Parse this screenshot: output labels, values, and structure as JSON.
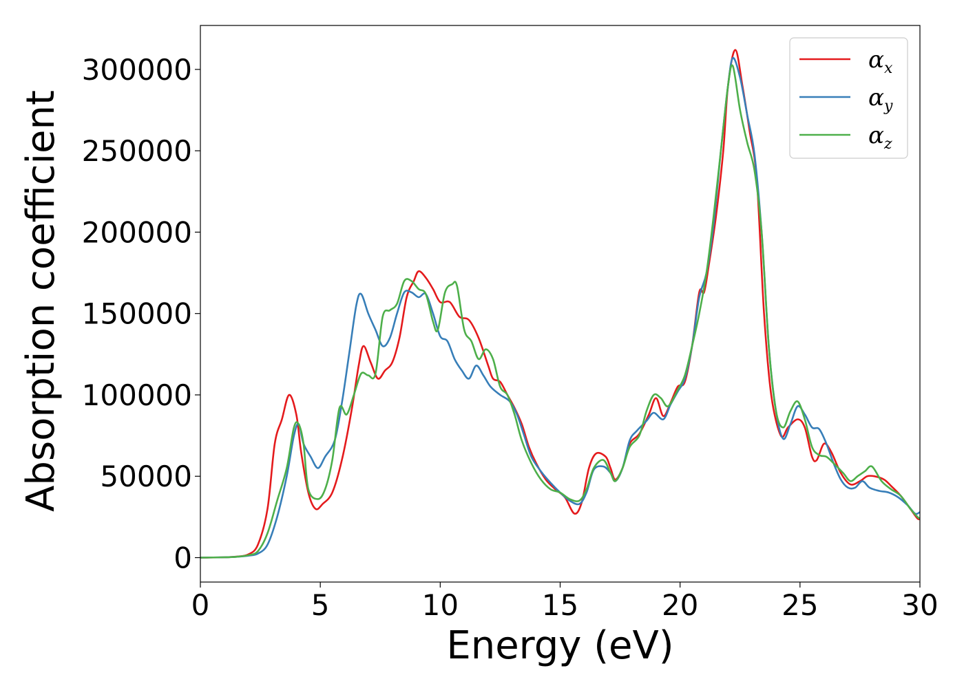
{
  "chart_data": {
    "type": "line",
    "title": "",
    "xlabel": "Energy (eV)",
    "ylabel": "Absorption coefficient",
    "xlim": [
      0,
      30
    ],
    "ylim": [
      -15000,
      327000
    ],
    "xticks": [
      0,
      5,
      10,
      15,
      20,
      25,
      30
    ],
    "yticks": [
      0,
      50000,
      100000,
      150000,
      200000,
      250000,
      300000
    ],
    "grid": false,
    "legend_position": "top-right",
    "series": [
      {
        "name": "α",
        "subscript": "x",
        "color": "#e41a1c",
        "points": [
          [
            0,
            0
          ],
          [
            1,
            200
          ],
          [
            1.5,
            600
          ],
          [
            2,
            2000
          ],
          [
            2.4,
            8000
          ],
          [
            2.8,
            30000
          ],
          [
            3.1,
            70000
          ],
          [
            3.4,
            85000
          ],
          [
            3.7,
            100000
          ],
          [
            4.0,
            88000
          ],
          [
            4.2,
            65000
          ],
          [
            4.5,
            40000
          ],
          [
            4.8,
            30000
          ],
          [
            5.1,
            33000
          ],
          [
            5.5,
            40000
          ],
          [
            5.9,
            60000
          ],
          [
            6.3,
            90000
          ],
          [
            6.6,
            118000
          ],
          [
            6.8,
            130000
          ],
          [
            7.1,
            120000
          ],
          [
            7.4,
            110000
          ],
          [
            7.7,
            115000
          ],
          [
            8.0,
            120000
          ],
          [
            8.3,
            135000
          ],
          [
            8.6,
            160000
          ],
          [
            8.9,
            170000
          ],
          [
            9.1,
            176000
          ],
          [
            9.4,
            172000
          ],
          [
            9.7,
            165000
          ],
          [
            10.0,
            157000
          ],
          [
            10.4,
            157000
          ],
          [
            10.8,
            148000
          ],
          [
            11.2,
            146000
          ],
          [
            11.6,
            135000
          ],
          [
            12.0,
            118000
          ],
          [
            12.2,
            110000
          ],
          [
            12.5,
            108000
          ],
          [
            12.8,
            100000
          ],
          [
            13.1,
            92000
          ],
          [
            13.4,
            82000
          ],
          [
            13.7,
            68000
          ],
          [
            14.0,
            58000
          ],
          [
            14.4,
            48000
          ],
          [
            14.8,
            42000
          ],
          [
            15.2,
            37000
          ],
          [
            15.6,
            27000
          ],
          [
            15.9,
            34000
          ],
          [
            16.2,
            55000
          ],
          [
            16.5,
            64000
          ],
          [
            16.9,
            62000
          ],
          [
            17.1,
            55000
          ],
          [
            17.3,
            48000
          ],
          [
            17.6,
            55000
          ],
          [
            17.9,
            70000
          ],
          [
            18.3,
            76000
          ],
          [
            18.7,
            88000
          ],
          [
            19.0,
            98000
          ],
          [
            19.3,
            87000
          ],
          [
            19.6,
            95000
          ],
          [
            19.9,
            105000
          ],
          [
            20.2,
            108000
          ],
          [
            20.5,
            130000
          ],
          [
            20.8,
            163000
          ],
          [
            21.0,
            163000
          ],
          [
            21.2,
            180000
          ],
          [
            21.5,
            210000
          ],
          [
            21.8,
            250000
          ],
          [
            22.0,
            290000
          ],
          [
            22.3,
            312000
          ],
          [
            22.6,
            290000
          ],
          [
            22.9,
            262000
          ],
          [
            23.2,
            232000
          ],
          [
            23.5,
            150000
          ],
          [
            23.8,
            100000
          ],
          [
            24.2,
            75000
          ],
          [
            24.5,
            80000
          ],
          [
            24.9,
            85000
          ],
          [
            25.2,
            80000
          ],
          [
            25.5,
            62000
          ],
          [
            25.7,
            60000
          ],
          [
            26.0,
            70000
          ],
          [
            26.3,
            65000
          ],
          [
            26.7,
            52000
          ],
          [
            27.1,
            45000
          ],
          [
            27.5,
            47000
          ],
          [
            27.8,
            50000
          ],
          [
            28.1,
            50000
          ],
          [
            28.5,
            48000
          ],
          [
            28.8,
            44000
          ],
          [
            29.2,
            38000
          ],
          [
            29.6,
            30000
          ],
          [
            29.9,
            24000
          ],
          [
            30,
            24000
          ]
        ]
      },
      {
        "name": "α",
        "subscript": "y",
        "color": "#377eb8",
        "points": [
          [
            0,
            0
          ],
          [
            1,
            200
          ],
          [
            1.5,
            500
          ],
          [
            2,
            1200
          ],
          [
            2.4,
            2500
          ],
          [
            2.8,
            8000
          ],
          [
            3.2,
            25000
          ],
          [
            3.6,
            50000
          ],
          [
            3.9,
            75000
          ],
          [
            4.1,
            82000
          ],
          [
            4.3,
            70000
          ],
          [
            4.6,
            62000
          ],
          [
            4.9,
            55000
          ],
          [
            5.2,
            62000
          ],
          [
            5.6,
            72000
          ],
          [
            5.9,
            95000
          ],
          [
            6.2,
            125000
          ],
          [
            6.5,
            155000
          ],
          [
            6.7,
            162000
          ],
          [
            7.0,
            150000
          ],
          [
            7.3,
            140000
          ],
          [
            7.6,
            130000
          ],
          [
            7.9,
            135000
          ],
          [
            8.2,
            150000
          ],
          [
            8.5,
            163000
          ],
          [
            8.8,
            163000
          ],
          [
            9.1,
            160000
          ],
          [
            9.4,
            162000
          ],
          [
            9.7,
            150000
          ],
          [
            10.0,
            136000
          ],
          [
            10.3,
            133000
          ],
          [
            10.6,
            122000
          ],
          [
            10.9,
            115000
          ],
          [
            11.2,
            110000
          ],
          [
            11.5,
            118000
          ],
          [
            11.8,
            112000
          ],
          [
            12.1,
            105000
          ],
          [
            12.5,
            100000
          ],
          [
            12.9,
            96000
          ],
          [
            13.2,
            88000
          ],
          [
            13.5,
            75000
          ],
          [
            13.8,
            62000
          ],
          [
            14.2,
            53000
          ],
          [
            14.6,
            46000
          ],
          [
            15.0,
            40000
          ],
          [
            15.4,
            35000
          ],
          [
            15.8,
            33000
          ],
          [
            16.1,
            40000
          ],
          [
            16.4,
            54000
          ],
          [
            16.8,
            56000
          ],
          [
            17.1,
            52000
          ],
          [
            17.3,
            47000
          ],
          [
            17.6,
            55000
          ],
          [
            17.9,
            72000
          ],
          [
            18.2,
            78000
          ],
          [
            18.6,
            84000
          ],
          [
            18.9,
            89000
          ],
          [
            19.3,
            85000
          ],
          [
            19.6,
            94000
          ],
          [
            19.9,
            102000
          ],
          [
            20.2,
            110000
          ],
          [
            20.5,
            130000
          ],
          [
            20.8,
            160000
          ],
          [
            21.1,
            175000
          ],
          [
            21.4,
            205000
          ],
          [
            21.7,
            250000
          ],
          [
            22.0,
            290000
          ],
          [
            22.2,
            307000
          ],
          [
            22.5,
            295000
          ],
          [
            22.8,
            272000
          ],
          [
            23.1,
            248000
          ],
          [
            23.4,
            200000
          ],
          [
            23.7,
            130000
          ],
          [
            24.0,
            90000
          ],
          [
            24.3,
            73000
          ],
          [
            24.6,
            82000
          ],
          [
            24.9,
            93000
          ],
          [
            25.2,
            88000
          ],
          [
            25.5,
            80000
          ],
          [
            25.8,
            79000
          ],
          [
            26.1,
            70000
          ],
          [
            26.4,
            58000
          ],
          [
            26.7,
            48000
          ],
          [
            27.0,
            43000
          ],
          [
            27.3,
            43000
          ],
          [
            27.6,
            47000
          ],
          [
            27.9,
            43000
          ],
          [
            28.3,
            41000
          ],
          [
            28.7,
            40000
          ],
          [
            29.1,
            37000
          ],
          [
            29.5,
            32000
          ],
          [
            29.8,
            27000
          ],
          [
            30,
            28000
          ]
        ]
      },
      {
        "name": "α",
        "subscript": "z",
        "color": "#4daf4a",
        "points": [
          [
            0,
            0
          ],
          [
            1,
            200
          ],
          [
            1.5,
            500
          ],
          [
            2,
            1500
          ],
          [
            2.4,
            4000
          ],
          [
            2.8,
            15000
          ],
          [
            3.2,
            35000
          ],
          [
            3.6,
            55000
          ],
          [
            3.9,
            80000
          ],
          [
            4.1,
            82000
          ],
          [
            4.3,
            70000
          ],
          [
            4.5,
            42000
          ],
          [
            4.9,
            36000
          ],
          [
            5.2,
            42000
          ],
          [
            5.5,
            60000
          ],
          [
            5.8,
            92000
          ],
          [
            6.1,
            88000
          ],
          [
            6.4,
            100000
          ],
          [
            6.7,
            113000
          ],
          [
            7.0,
            112000
          ],
          [
            7.3,
            113000
          ],
          [
            7.6,
            148000
          ],
          [
            7.9,
            152000
          ],
          [
            8.2,
            156000
          ],
          [
            8.5,
            170000
          ],
          [
            8.8,
            170000
          ],
          [
            9.1,
            165000
          ],
          [
            9.4,
            162000
          ],
          [
            9.7,
            145000
          ],
          [
            9.9,
            140000
          ],
          [
            10.2,
            163000
          ],
          [
            10.5,
            168000
          ],
          [
            10.7,
            167000
          ],
          [
            11.0,
            140000
          ],
          [
            11.3,
            133000
          ],
          [
            11.6,
            122000
          ],
          [
            11.9,
            128000
          ],
          [
            12.2,
            122000
          ],
          [
            12.5,
            105000
          ],
          [
            12.8,
            100000
          ],
          [
            13.1,
            88000
          ],
          [
            13.4,
            72000
          ],
          [
            13.8,
            58000
          ],
          [
            14.2,
            48000
          ],
          [
            14.6,
            42000
          ],
          [
            15.0,
            40000
          ],
          [
            15.4,
            36000
          ],
          [
            15.8,
            35000
          ],
          [
            16.1,
            42000
          ],
          [
            16.4,
            55000
          ],
          [
            16.8,
            60000
          ],
          [
            17.1,
            52000
          ],
          [
            17.3,
            47000
          ],
          [
            17.6,
            55000
          ],
          [
            17.9,
            68000
          ],
          [
            18.3,
            75000
          ],
          [
            18.6,
            90000
          ],
          [
            18.9,
            100000
          ],
          [
            19.2,
            98000
          ],
          [
            19.5,
            93000
          ],
          [
            19.9,
            103000
          ],
          [
            20.2,
            112000
          ],
          [
            20.5,
            130000
          ],
          [
            20.8,
            150000
          ],
          [
            21.1,
            175000
          ],
          [
            21.4,
            210000
          ],
          [
            21.7,
            250000
          ],
          [
            22.0,
            290000
          ],
          [
            22.2,
            302000
          ],
          [
            22.5,
            275000
          ],
          [
            22.8,
            255000
          ],
          [
            23.1,
            238000
          ],
          [
            23.4,
            200000
          ],
          [
            23.7,
            130000
          ],
          [
            24.0,
            90000
          ],
          [
            24.3,
            80000
          ],
          [
            24.6,
            90000
          ],
          [
            24.9,
            96000
          ],
          [
            25.2,
            85000
          ],
          [
            25.5,
            68000
          ],
          [
            25.8,
            63000
          ],
          [
            26.1,
            62000
          ],
          [
            26.4,
            58000
          ],
          [
            26.8,
            52000
          ],
          [
            27.1,
            47000
          ],
          [
            27.4,
            50000
          ],
          [
            27.7,
            53000
          ],
          [
            28.0,
            56000
          ],
          [
            28.4,
            47000
          ],
          [
            28.8,
            42000
          ],
          [
            29.2,
            38000
          ],
          [
            29.6,
            30000
          ],
          [
            29.9,
            25000
          ],
          [
            30,
            24000
          ]
        ]
      }
    ]
  }
}
